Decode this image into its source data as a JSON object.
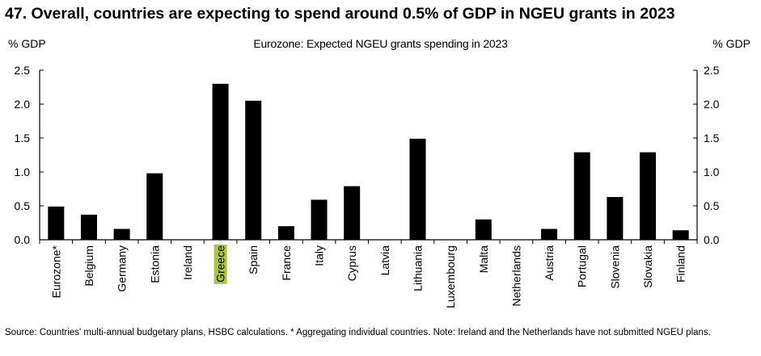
{
  "figure": {
    "title": "47. Overall, countries are expecting to spend around 0.5% of GDP in NGEU grants in 2023",
    "source": "Source: Countries' multi-annual budgetary plans, HSBC calculations. * Aggregating individual countries. Note: Ireland and the Netherlands have not submitted NGEU plans."
  },
  "colors": {
    "bar": "#000000",
    "highlight": "#a8c838",
    "axis": "#000000"
  },
  "chart_data": {
    "type": "bar",
    "title": "Eurozone: Expected NGEU grants spending in 2023",
    "ylabel_left": "% GDP",
    "ylabel_right": "% GDP",
    "xlabel": "",
    "ylim": [
      0,
      2.5
    ],
    "yticks": [
      "0.0",
      "0.5",
      "1.0",
      "1.5",
      "2.0",
      "2.5"
    ],
    "grid": false,
    "highlighted_category": "Greece",
    "categories": [
      "Eurozone*",
      "Belgium",
      "Germany",
      "Estonia",
      "Ireland",
      "Greece",
      "Spain",
      "France",
      "Italy",
      "Cyprus",
      "Latvia",
      "Lithuania",
      "Luxembourg",
      "Malta",
      "Netherlands",
      "Austria",
      "Portugal",
      "Slovenia",
      "Slovakia",
      "Finland"
    ],
    "values": [
      0.49,
      0.37,
      0.16,
      0.98,
      0,
      2.3,
      2.05,
      0.2,
      0.59,
      0.79,
      0,
      1.49,
      0,
      0.3,
      0,
      0.16,
      1.29,
      0.63,
      1.29,
      0.14
    ]
  }
}
